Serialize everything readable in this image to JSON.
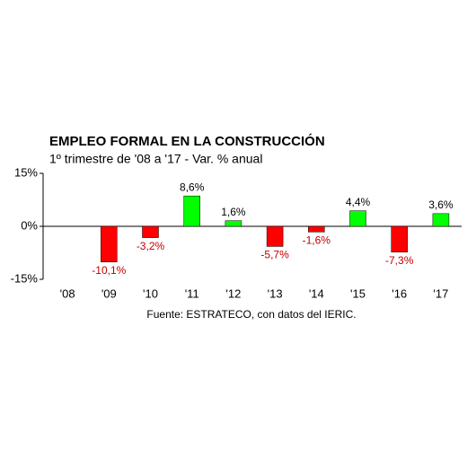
{
  "chart_data": {
    "type": "bar",
    "title": "EMPLEO FORMAL EN LA CONSTRUCCIÓN",
    "subtitle": "1º trimestre de '08 a '17 - Var. % anual",
    "source": "Fuente: ESTRATECO, con datos del IERIC.",
    "categories": [
      "'08",
      "'09",
      "'10",
      "'11",
      "'12",
      "'13",
      "'14",
      "'15",
      "'16",
      "'17"
    ],
    "values": [
      null,
      -10.1,
      -3.2,
      8.6,
      1.6,
      -5.7,
      -1.6,
      4.4,
      -7.3,
      3.6
    ],
    "value_labels": [
      null,
      "-10,1%",
      "-3,2%",
      "8,6%",
      "1,6%",
      "-5,7%",
      "-1,6%",
      "4,4%",
      "-7,3%",
      "3,6%"
    ],
    "positive_color": "#00ff00",
    "negative_color": "#ff0000",
    "ylim": [
      -15,
      15
    ],
    "yticks": [
      {
        "value": -15,
        "label": "-15%"
      },
      {
        "value": 0,
        "label": "0%"
      },
      {
        "value": 15,
        "label": "15%"
      }
    ]
  }
}
